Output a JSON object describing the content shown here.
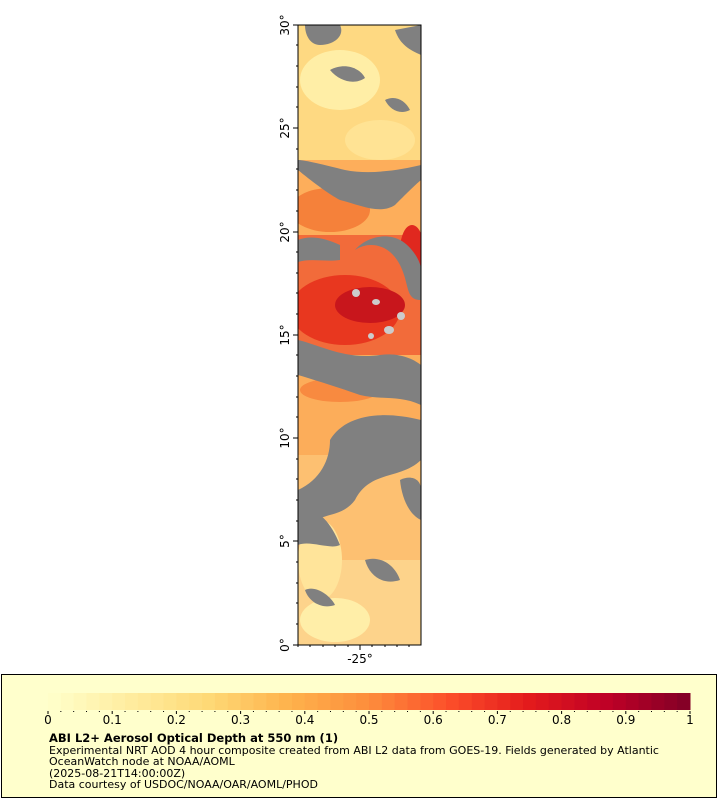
{
  "map": {
    "lat_ticks": [
      "0°",
      "5°",
      "10°",
      "15°",
      "20°",
      "25°",
      "30°"
    ],
    "lon_ticks": [
      "-25°"
    ],
    "lat_range": [
      0,
      30
    ],
    "colors": {
      "land_or_missing": "#808080",
      "cloud_gaps": "#cccccc"
    }
  },
  "colorbar": {
    "ticks": [
      "0",
      "0.1",
      "0.2",
      "0.3",
      "0.4",
      "0.5",
      "0.6",
      "0.7",
      "0.8",
      "0.9",
      "1"
    ],
    "range": [
      0,
      1
    ],
    "colors": [
      "#ffffcc",
      "#ffeda0",
      "#fed976",
      "#feb24c",
      "#fd8d3c",
      "#fc4e2a",
      "#e31a1c",
      "#bd0026",
      "#800026"
    ]
  },
  "legend": {
    "title": "ABI L2+ Aerosol Optical Depth at 550 nm (1)",
    "line1": "Experimental NRT AOD 4 hour composite created from ABI L2 data from GOES-19. Fields generated by Atlantic",
    "line2": "OceanWatch node at NOAA/AOML",
    "line3": "(2025-08-21T14:00:00Z)",
    "line4": "Data courtesy of USDOC/NOAA/OAR/AOML/PHOD"
  }
}
